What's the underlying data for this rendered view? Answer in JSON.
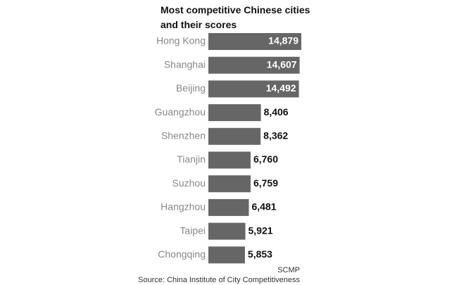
{
  "chart_data": {
    "type": "bar",
    "orientation": "horizontal",
    "title": "Most competitive Chinese cities and their scores",
    "categories": [
      "Hong Kong",
      "Shanghai",
      "Beijing",
      "Guangzhou",
      "Shenzhen",
      "Tianjin",
      "Suzhou",
      "Hangzhou",
      "Taipei",
      "Chongqing"
    ],
    "values": [
      14879,
      14607,
      14492,
      8406,
      8362,
      6760,
      6759,
      6481,
      5921,
      5853
    ],
    "value_labels": [
      "14,879",
      "14,607",
      "14,492",
      "8,406",
      "8,362",
      "6,760",
      "6,759",
      "6,481",
      "5,921",
      "5,853"
    ],
    "color": "#666666",
    "credit": "SCMP",
    "source": "Source: China Institute of City Competitiveness"
  }
}
